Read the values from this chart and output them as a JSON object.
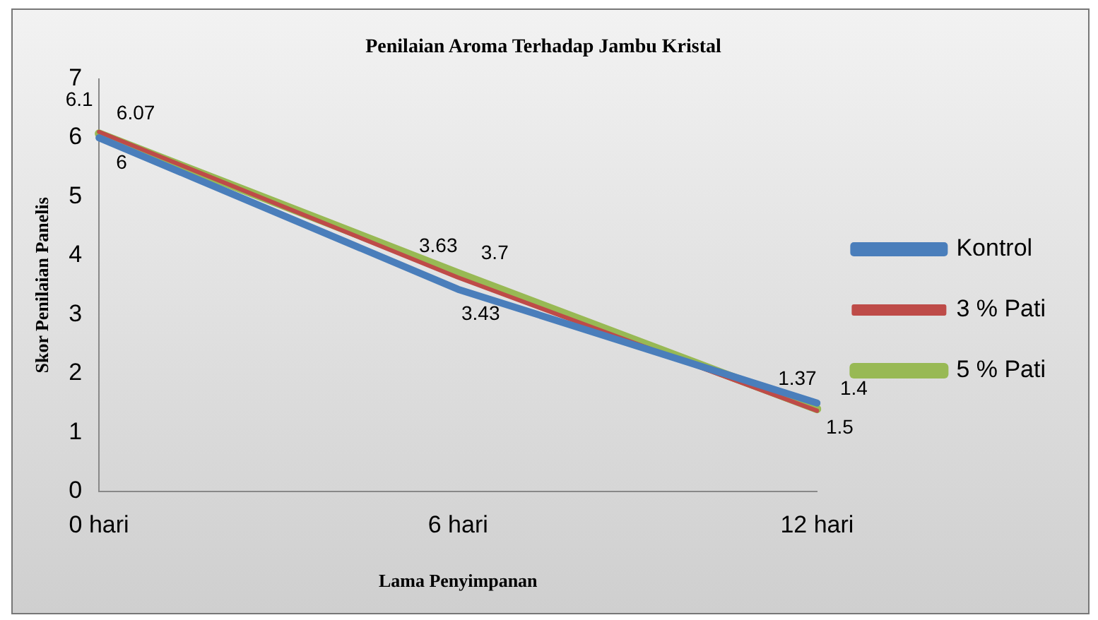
{
  "chart_data": {
    "type": "line",
    "title": "Penilaian Aroma Terhadap Jambu Kristal",
    "xlabel": "Lama Penyimpanan",
    "ylabel": "Skor Penilaian Panelis",
    "categories": [
      "0 hari",
      "6 hari",
      "12 hari"
    ],
    "series": [
      {
        "name": "Kontrol",
        "color": "#4a7ebb",
        "values": [
          6,
          3.43,
          1.5
        ]
      },
      {
        "name": "3 % Pati",
        "color": "#be4b48",
        "values": [
          6.1,
          3.63,
          1.37
        ]
      },
      {
        "name": "5 % Pati",
        "color": "#98b954",
        "values": [
          6.07,
          3.7,
          1.4
        ]
      }
    ],
    "ylim": [
      0,
      7
    ],
    "yticks": [
      0,
      1,
      2,
      3,
      4,
      5,
      6,
      7
    ],
    "grid": false,
    "legend": "right",
    "marker": "none",
    "line_style": "solid",
    "data_labels": true
  }
}
